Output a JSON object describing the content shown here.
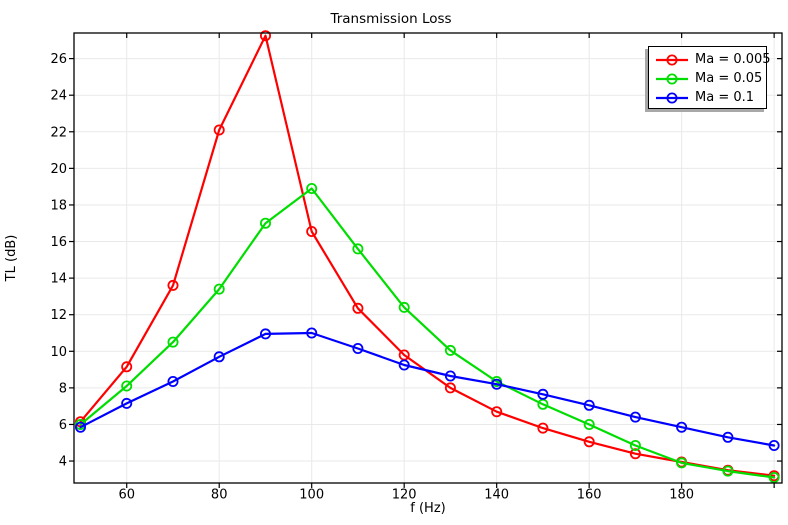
{
  "chart_data": {
    "type": "line",
    "title": "Transmission Loss",
    "xlabel": "f (Hz)",
    "ylabel": "TL (dB)",
    "xlim": [
      48.6,
      201.7
    ],
    "ylim": [
      2.8,
      27.4
    ],
    "grid": true,
    "legend_position": "top-right",
    "marker": "open-circle",
    "grid_color": "#e9e9e9",
    "axis_color": "#000000",
    "xticks": [
      {
        "value": 60,
        "label": "60"
      },
      {
        "value": 80,
        "label": "80"
      },
      {
        "value": 100,
        "label": "100"
      },
      {
        "value": 120,
        "label": "120"
      },
      {
        "value": 140,
        "label": "140"
      },
      {
        "value": 160,
        "label": "160"
      },
      {
        "value": 180,
        "label": "180"
      },
      {
        "value": 200,
        "label": ""
      }
    ],
    "yticks": [
      {
        "value": 4,
        "label": "4"
      },
      {
        "value": 6,
        "label": "6"
      },
      {
        "value": 8,
        "label": "8"
      },
      {
        "value": 10,
        "label": "10"
      },
      {
        "value": 12,
        "label": "12"
      },
      {
        "value": 14,
        "label": "14"
      },
      {
        "value": 16,
        "label": "16"
      },
      {
        "value": 18,
        "label": "18"
      },
      {
        "value": 20,
        "label": "20"
      },
      {
        "value": 22,
        "label": "22"
      },
      {
        "value": 24,
        "label": "24"
      },
      {
        "value": 26,
        "label": "26"
      }
    ],
    "x": [
      50,
      60,
      70,
      80,
      90,
      100,
      110,
      120,
      130,
      140,
      150,
      160,
      170,
      180,
      190,
      200
    ],
    "series": [
      {
        "name": "Ma = 0.005",
        "color": "#ff0000",
        "values": [
          6.15,
          9.15,
          13.6,
          22.1,
          27.25,
          16.55,
          12.35,
          9.8,
          8.0,
          6.7,
          5.8,
          5.05,
          4.4,
          3.95,
          3.5,
          3.2
        ]
      },
      {
        "name": "Ma = 0.05",
        "color": "#00dd00",
        "values": [
          6.0,
          8.1,
          10.5,
          13.4,
          17.0,
          18.9,
          15.6,
          12.4,
          10.05,
          8.35,
          7.1,
          6.0,
          4.85,
          3.9,
          3.45,
          3.1
        ]
      },
      {
        "name": "Ma = 0.1",
        "color": "#0000ff",
        "values": [
          5.85,
          7.15,
          8.35,
          9.7,
          10.95,
          11.0,
          10.15,
          9.25,
          8.65,
          8.2,
          7.65,
          7.05,
          6.4,
          5.85,
          5.3,
          4.85
        ]
      }
    ]
  }
}
